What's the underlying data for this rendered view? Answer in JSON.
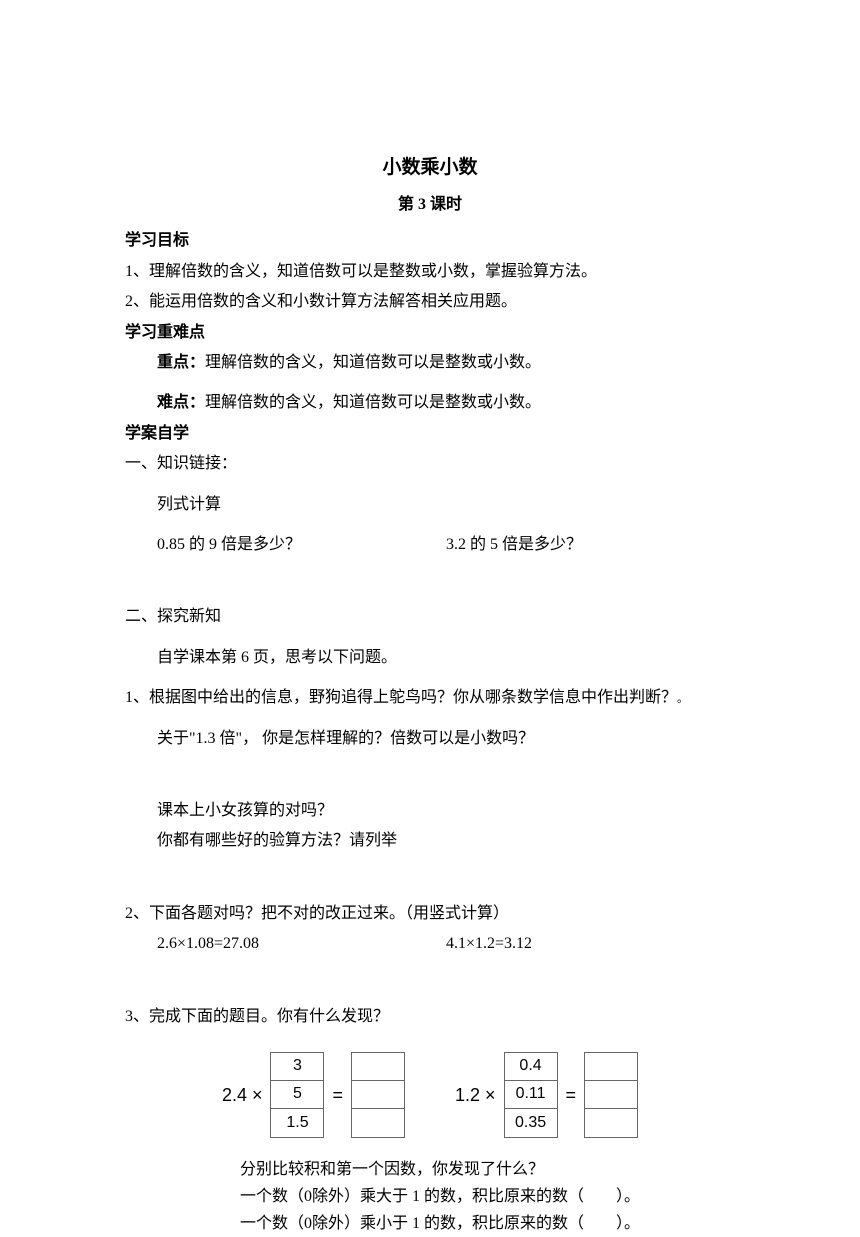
{
  "title": "小数乘小数",
  "subtitle": "第 3 课时",
  "sections": {
    "objectives": {
      "heading": "学习目标",
      "items": [
        "1、理解倍数的含义，知道倍数可以是整数或小数，掌握验算方法。",
        "2、能运用倍数的含义和小数计算方法解答相关应用题。"
      ]
    },
    "keypoints": {
      "heading": "学习重难点",
      "focus_label": "重点：",
      "focus_text": "理解倍数的含义，知道倍数可以是整数或小数。",
      "difficulty_label": "难点：",
      "difficulty_text": "理解倍数的含义，知道倍数可以是整数或小数。"
    },
    "selfstudy": {
      "heading": "学案自学",
      "part1": {
        "heading": "一、知识链接：",
        "task_label": "列式计算",
        "q1": "0.85 的 9 倍是多少？",
        "q2": "3.2 的 5 倍是多少？"
      },
      "part2": {
        "heading": "二、探究新知",
        "instruction": "自学课本第 6 页，思考以下问题。",
        "q1_line1": "1、根据图中给出的信息，野狗追得上鸵鸟吗？你从哪条数学信息中作出判断？",
        "q1_line1_dot": "。",
        "q1_line2": "关于\"1.3 倍\"， 你是怎样理解的？倍数可以是小数吗？",
        "q1_line3": "课本上小女孩算的对吗？",
        "q1_line4": "你都有哪些好的验算方法？请列举",
        "q2_heading": "2、下面各题对吗？把不对的改正过来。（用竖式计算）",
        "q2_eq1": "2.6×1.08=27.08",
        "q2_eq2": "4.1×1.2=3.12",
        "q3_heading": "3、完成下面的题目。你有什么发现？"
      }
    },
    "equations": {
      "eq1": {
        "prefix": "2.4 ×",
        "values": [
          "3",
          "5",
          "1.5"
        ],
        "equals": "="
      },
      "eq2": {
        "prefix": "1.2 ×",
        "values": [
          "0.4",
          "0.11",
          "0.35"
        ],
        "equals": "="
      }
    },
    "footer": {
      "line1": "分别比较积和第一个因数，你发现了什么？",
      "line2_pre": "一个数（0除外）乘大于 1 的数，积比原来的数（",
      "line2_post": "）。",
      "line3_pre": "一个数（0除外）乘小于 1 的数，积比原来的数（",
      "line3_post": "）。"
    }
  }
}
